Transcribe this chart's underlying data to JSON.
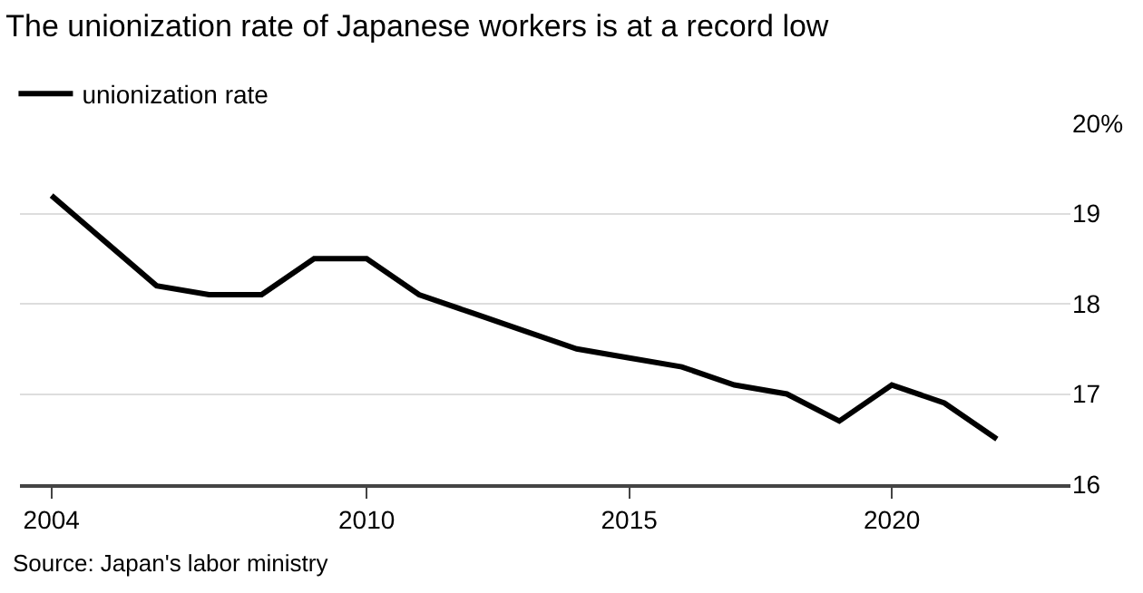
{
  "chart_data": {
    "type": "line",
    "title": "The unionization rate of Japanese workers is at a record low",
    "x": [
      2004,
      2005,
      2006,
      2007,
      2008,
      2009,
      2010,
      2011,
      2012,
      2013,
      2014,
      2015,
      2016,
      2017,
      2018,
      2019,
      2020,
      2021,
      2022
    ],
    "series": [
      {
        "name": "unionization rate",
        "color": "#000000",
        "values": [
          19.2,
          18.7,
          18.2,
          18.1,
          18.1,
          18.5,
          18.5,
          18.1,
          17.9,
          17.7,
          17.5,
          17.4,
          17.3,
          17.1,
          17.0,
          16.7,
          17.1,
          16.9,
          16.5
        ]
      }
    ],
    "xlim": [
      2003.4,
      2023.4
    ],
    "xticks": [
      2004,
      2010,
      2015,
      2020
    ],
    "ylim": [
      16,
      20
    ],
    "yticks": [
      16,
      17,
      18,
      19,
      {
        "value": 20,
        "label": "20%"
      }
    ],
    "grid": "y",
    "legend": "top left",
    "marker": "none",
    "line_style": "solid",
    "annotations": [
      "Source: Japan's labor ministry"
    ]
  }
}
